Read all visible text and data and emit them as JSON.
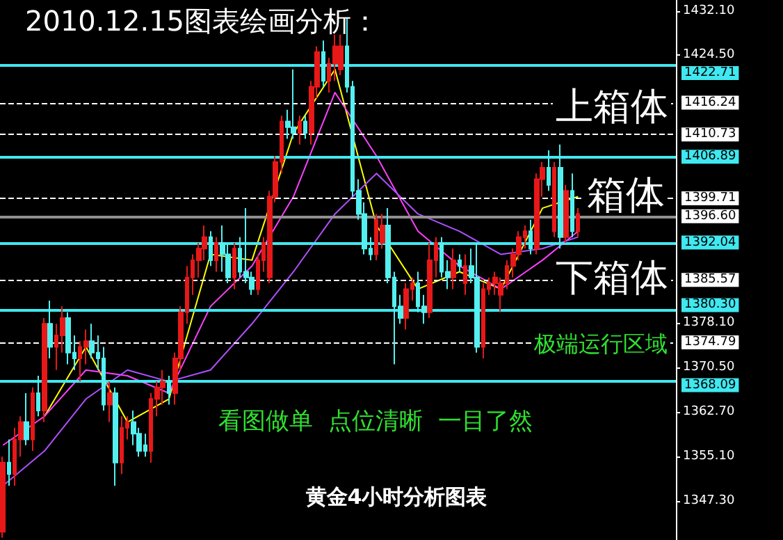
{
  "chart_data": {
    "type": "candlestick",
    "title": "2010.12.15图表绘画分析：",
    "annotations": [
      "上箱体",
      "箱体",
      "下箱体",
      "极端运行区域",
      "看图做单  点位清晰  一目了然",
      "黄金4小时分析图表"
    ],
    "categories": [
      null,
      null,
      null,
      null,
      null,
      null,
      null,
      null,
      null,
      null,
      null,
      null,
      null,
      null,
      null,
      null,
      null,
      null,
      null,
      null,
      null,
      null,
      null,
      null,
      null,
      null,
      null,
      null,
      null,
      null,
      null,
      null,
      null,
      null,
      null,
      null,
      null,
      null,
      null,
      null,
      null,
      null,
      null,
      null,
      null,
      null,
      null,
      null,
      null,
      null,
      null,
      null,
      null,
      null,
      null,
      null,
      null,
      null,
      null,
      null,
      null,
      null,
      null,
      null,
      null,
      null,
      null,
      null,
      null,
      null,
      null,
      null,
      null,
      null,
      null,
      null,
      null,
      null,
      null,
      null,
      null,
      null,
      null,
      null,
      null,
      null,
      null,
      null,
      null,
      null,
      null,
      null,
      null,
      null,
      null,
      null,
      null,
      null,
      null,
      null,
      null,
      null,
      null,
      null,
      null,
      null,
      null,
      null,
      null,
      null,
      null,
      null,
      null,
      null
    ],
    "ohlc": [
      [
        1342,
        1355,
        1341,
        1354
      ],
      [
        1354,
        1358,
        1350,
        1352
      ],
      [
        1352,
        1360,
        1350,
        1358
      ],
      [
        1358,
        1362,
        1355,
        1361
      ],
      [
        1361,
        1366,
        1357,
        1358
      ],
      [
        1358,
        1367,
        1356,
        1366
      ],
      [
        1366,
        1369,
        1362,
        1363
      ],
      [
        1363,
        1379,
        1361,
        1378
      ],
      [
        1378,
        1382,
        1372,
        1374
      ],
      [
        1374,
        1378,
        1370,
        1376
      ],
      [
        1376,
        1381,
        1373,
        1379
      ],
      [
        1379,
        1380,
        1371,
        1373
      ],
      [
        1373,
        1376,
        1370,
        1372
      ],
      [
        1372,
        1375,
        1368,
        1374
      ],
      [
        1374,
        1377,
        1371,
        1375
      ],
      [
        1375,
        1378,
        1372,
        1373
      ],
      [
        1373,
        1376,
        1370,
        1372
      ],
      [
        1372,
        1374,
        1363,
        1364
      ],
      [
        1364,
        1368,
        1361,
        1366
      ],
      [
        1366,
        1367,
        1350,
        1354
      ],
      [
        1354,
        1362,
        1352,
        1360
      ],
      [
        1360,
        1362,
        1358,
        1361
      ],
      [
        1361,
        1363,
        1357,
        1359
      ],
      [
        1359,
        1360,
        1355,
        1356
      ],
      [
        1357,
        1359,
        1355,
        1356
      ],
      [
        1356,
        1366,
        1354,
        1365
      ],
      [
        1365,
        1368,
        1362,
        1367
      ],
      [
        1367,
        1370,
        1364,
        1368
      ],
      [
        1368,
        1369,
        1364,
        1366
      ],
      [
        1366,
        1373,
        1364,
        1372
      ],
      [
        1372,
        1381,
        1370,
        1380
      ],
      [
        1380,
        1388,
        1378,
        1386
      ],
      [
        1386,
        1390,
        1383,
        1389
      ],
      [
        1389,
        1392,
        1386,
        1391
      ],
      [
        1391,
        1395,
        1389,
        1393
      ],
      [
        1393,
        1394,
        1388,
        1389
      ],
      [
        1389,
        1393,
        1387,
        1392
      ],
      [
        1392,
        1395,
        1387,
        1390
      ],
      [
        1390,
        1392,
        1385,
        1386
      ],
      [
        1386,
        1392,
        1384,
        1391
      ],
      [
        1391,
        1393,
        1386,
        1387
      ],
      [
        1387,
        1398,
        1385,
        1386
      ],
      [
        1386,
        1387,
        1383,
        1384
      ],
      [
        1384,
        1390,
        1383,
        1389
      ],
      [
        1389,
        1393,
        1387,
        1392
      ],
      [
        1386,
        1401,
        1385,
        1400
      ],
      [
        1400,
        1407,
        1399,
        1406
      ],
      [
        1406,
        1414,
        1404,
        1413
      ],
      [
        1413,
        1415,
        1410,
        1412
      ],
      [
        1412,
        1422,
        1410,
        1411
      ],
      [
        1411,
        1414,
        1409,
        1413
      ],
      [
        1413,
        1414,
        1410,
        1411
      ],
      [
        1411,
        1420,
        1409,
        1419
      ],
      [
        1419,
        1426,
        1417,
        1425
      ],
      [
        1425,
        1427,
        1419,
        1420
      ],
      [
        1420,
        1424,
        1418,
        1423
      ],
      [
        1423,
        1428,
        1420,
        1426
      ],
      [
        1422,
        1428,
        1421,
        1426
      ],
      [
        1426,
        1431,
        1418,
        1419
      ],
      [
        1419,
        1420,
        1400,
        1401
      ],
      [
        1401,
        1403,
        1396,
        1397
      ],
      [
        1397,
        1399,
        1390,
        1391
      ],
      [
        1391,
        1393,
        1389,
        1390
      ],
      [
        1390,
        1397,
        1389,
        1396
      ],
      [
        1392,
        1397,
        1391,
        1395
      ],
      [
        1395,
        1398,
        1385,
        1386
      ],
      [
        1386,
        1387,
        1371,
        1381
      ],
      [
        1381,
        1383,
        1378,
        1379
      ],
      [
        1379,
        1385,
        1377,
        1384
      ],
      [
        1384,
        1386,
        1382,
        1385
      ],
      [
        1385,
        1387,
        1380,
        1381
      ],
      [
        1381,
        1383,
        1378,
        1380
      ],
      [
        1380,
        1392,
        1379,
        1389
      ],
      [
        1389,
        1393,
        1386,
        1392
      ],
      [
        1392,
        1393,
        1386,
        1387
      ],
      [
        1387,
        1389,
        1384,
        1386
      ],
      [
        1386,
        1391,
        1384,
        1389
      ],
      [
        1389,
        1390,
        1387,
        1388
      ],
      [
        1385,
        1390,
        1383,
        1388
      ],
      [
        1388,
        1391,
        1385,
        1386
      ],
      [
        1386,
        1392,
        1373,
        1374
      ],
      [
        1374,
        1385,
        1372,
        1384
      ],
      [
        1384,
        1386,
        1383,
        1385
      ],
      [
        1385,
        1387,
        1383,
        1386
      ],
      [
        1383,
        1386,
        1380,
        1385
      ],
      [
        1385,
        1389,
        1384,
        1388
      ],
      [
        1388,
        1391,
        1386,
        1390
      ],
      [
        1390,
        1394,
        1389,
        1393
      ],
      [
        1393,
        1395,
        1391,
        1394
      ],
      [
        1394,
        1396,
        1390,
        1391
      ],
      [
        1391,
        1404,
        1390,
        1403
      ],
      [
        1403,
        1406,
        1400,
        1405
      ],
      [
        1405,
        1408,
        1401,
        1402
      ],
      [
        1394,
        1406,
        1393,
        1405
      ],
      [
        1405,
        1409,
        1391,
        1393
      ],
      [
        1393,
        1402,
        1392,
        1401
      ],
      [
        1401,
        1404,
        1393,
        1394
      ],
      [
        1394,
        1398,
        1393,
        1397
      ],
      null,
      null,
      null,
      null,
      null,
      null,
      null,
      null,
      null,
      null,
      null,
      null,
      null,
      null,
      null,
      null
    ],
    "series": [
      {
        "type": "line",
        "color": "#ffff00",
        "values": [
          null,
          null,
          null,
          null,
          null,
          null,
          null,
          1362,
          null,
          null,
          null,
          null,
          null,
          null,
          1374,
          null,
          null,
          null,
          null,
          null,
          null,
          1361,
          null,
          null,
          null,
          null,
          null,
          null,
          1365,
          null,
          null,
          null,
          null,
          null,
          null,
          1390,
          null,
          null,
          null,
          null,
          null,
          null,
          1389,
          null,
          null,
          null,
          null,
          null,
          null,
          1411,
          null,
          null,
          null,
          null,
          null,
          null,
          1422,
          null,
          null,
          null,
          null,
          null,
          null,
          1395,
          null,
          null,
          null,
          null,
          null,
          null,
          1384,
          null,
          null,
          null,
          null,
          null,
          null,
          1387,
          null,
          null,
          null,
          null,
          null,
          null,
          1384,
          null,
          null,
          null,
          null,
          null,
          null,
          1398,
          null,
          null,
          null,
          null,
          null,
          1400,
          null,
          null,
          null,
          null,
          null,
          null,
          null,
          null,
          null,
          null,
          null,
          null,
          null,
          null,
          null,
          null
        ]
      },
      {
        "type": "line",
        "color": "#ff40ff",
        "values": [
          1357,
          null,
          null,
          null,
          null,
          null,
          null,
          1362,
          null,
          null,
          null,
          null,
          null,
          null,
          1370,
          null,
          null,
          null,
          null,
          null,
          null,
          1369,
          null,
          null,
          null,
          null,
          null,
          null,
          1366,
          null,
          null,
          null,
          null,
          null,
          null,
          1381,
          null,
          null,
          null,
          null,
          null,
          null,
          1388,
          null,
          null,
          null,
          null,
          null,
          null,
          1400,
          null,
          null,
          null,
          null,
          null,
          null,
          1418,
          null,
          null,
          null,
          null,
          null,
          null,
          1407,
          null,
          null,
          null,
          null,
          null,
          null,
          1394,
          null,
          null,
          null,
          null,
          null,
          null,
          1388,
          null,
          null,
          null,
          null,
          null,
          null,
          1384,
          null,
          null,
          null,
          null,
          null,
          null,
          1389,
          null,
          null,
          null,
          null,
          null,
          1394,
          null,
          null,
          null,
          null,
          null,
          null,
          null,
          null,
          null,
          null,
          null,
          null,
          null,
          null,
          null,
          null
        ]
      },
      {
        "type": "line",
        "color": "#b050ff",
        "values": [
          1350,
          null,
          null,
          null,
          null,
          null,
          null,
          1356,
          null,
          null,
          null,
          null,
          null,
          null,
          1365,
          null,
          null,
          null,
          null,
          null,
          null,
          1370,
          null,
          null,
          null,
          null,
          null,
          null,
          1368,
          null,
          null,
          null,
          null,
          null,
          null,
          1370,
          null,
          null,
          null,
          null,
          null,
          null,
          1378,
          null,
          null,
          null,
          null,
          null,
          null,
          1387,
          null,
          null,
          null,
          null,
          null,
          null,
          1397,
          null,
          null,
          null,
          null,
          null,
          null,
          1404,
          null,
          null,
          null,
          null,
          null,
          null,
          1397,
          null,
          null,
          null,
          null,
          null,
          null,
          1394,
          null,
          null,
          null,
          null,
          null,
          null,
          1390,
          null,
          null,
          null,
          null,
          null,
          null,
          1391,
          null,
          null,
          null,
          null,
          null,
          1393,
          null,
          null,
          null,
          null,
          null,
          null,
          null,
          null,
          null,
          null,
          null,
          null,
          null,
          null,
          null,
          null
        ]
      }
    ],
    "ylim": [
      1340.6,
      1434.0
    ],
    "yticks": [
      {
        "value": 1432.1,
        "label": "1432.10"
      },
      {
        "value": 1424.5,
        "label": "1424.50"
      },
      {
        "value": 1378.1,
        "label": "1378.10"
      },
      {
        "value": 1370.5,
        "label": "1370.50"
      },
      {
        "value": 1362.7,
        "label": "1362.70"
      },
      {
        "value": 1355.1,
        "label": "1355.10"
      },
      {
        "value": 1347.3,
        "label": "1347.30"
      }
    ],
    "tick_labels": "y",
    "grid": false,
    "ref_lines": [
      {
        "axis": "y",
        "value": 1422.71,
        "label": "1422.71",
        "color": "#40e8f0",
        "line_style": "solid"
      },
      {
        "axis": "y",
        "value": 1416.24,
        "label": "1416.24",
        "color": "#ffffff",
        "line_style": "dashed"
      },
      {
        "axis": "y",
        "value": 1410.73,
        "label": "1410.73",
        "color": "#ffffff",
        "line_style": "dashed"
      },
      {
        "axis": "y",
        "value": 1406.89,
        "label": "1406.89",
        "color": "#40e8f0",
        "line_style": "solid"
      },
      {
        "axis": "y",
        "value": 1399.71,
        "label": "1399.71",
        "color": "#ffffff",
        "line_style": "dashed"
      },
      {
        "axis": "y",
        "value": 1396.6,
        "label": "1396.60",
        "color": "#909090",
        "line_style": "solid"
      },
      {
        "axis": "y",
        "value": 1392.04,
        "label": "1392.04",
        "color": "#40e8f0",
        "line_style": "solid"
      },
      {
        "axis": "y",
        "value": 1385.57,
        "label": "1385.57",
        "color": "#ffffff",
        "line_style": "dashed"
      },
      {
        "axis": "y",
        "value": 1380.3,
        "label": "1380.30",
        "color": "#40e8f0",
        "line_style": "solid"
      },
      {
        "axis": "y",
        "value": 1374.79,
        "label": "1374.79",
        "color": "#ffffff",
        "line_style": "dashed"
      },
      {
        "axis": "y",
        "value": 1368.09,
        "label": "1368.09",
        "color": "#40e8f0",
        "line_style": "solid"
      }
    ]
  }
}
